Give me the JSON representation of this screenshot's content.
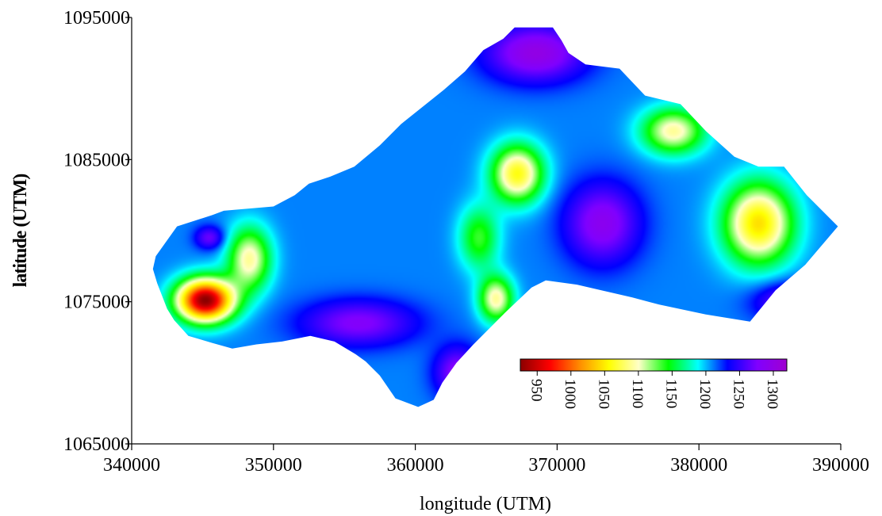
{
  "chart_data": {
    "type": "heatmap",
    "title": "",
    "xlabel": "longitude (UTM)",
    "ylabel": "latitude (UTM)",
    "xlim": [
      340000,
      390000
    ],
    "ylim": [
      1065000,
      1095000
    ],
    "xticks": [
      340000,
      350000,
      360000,
      370000,
      380000,
      390000
    ],
    "yticks": [
      1065000,
      1075000,
      1085000,
      1095000
    ],
    "grid": false,
    "colorbar": {
      "ticks": [
        950,
        1000,
        1050,
        1100,
        1150,
        1200,
        1250,
        1300
      ],
      "range": [
        925,
        1320
      ],
      "colors": [
        "#8b0000",
        "#ff0000",
        "#ff8c00",
        "#ffff00",
        "#ffffc8",
        "#00ff00",
        "#00ffff",
        "#0000ff",
        "#8000ff",
        "#a000d0"
      ],
      "placement": "lower-right inside plot"
    },
    "region_boundary": [
      [
        341700,
        1078200
      ],
      [
        343200,
        1080300
      ],
      [
        345700,
        1081100
      ],
      [
        346500,
        1081400
      ],
      [
        350000,
        1081700
      ],
      [
        351500,
        1082500
      ],
      [
        352500,
        1083300
      ],
      [
        354000,
        1083800
      ],
      [
        355700,
        1084500
      ],
      [
        357500,
        1086000
      ],
      [
        359000,
        1087500
      ],
      [
        362000,
        1089900
      ],
      [
        363500,
        1091200
      ],
      [
        364800,
        1092700
      ],
      [
        366200,
        1093500
      ],
      [
        367000,
        1094300
      ],
      [
        369700,
        1094300
      ],
      [
        370300,
        1093400
      ],
      [
        370800,
        1092500
      ],
      [
        372000,
        1091700
      ],
      [
        374400,
        1091400
      ],
      [
        376200,
        1089500
      ],
      [
        378700,
        1088900
      ],
      [
        380500,
        1087000
      ],
      [
        382500,
        1085200
      ],
      [
        384200,
        1084500
      ],
      [
        386000,
        1084500
      ],
      [
        387600,
        1082500
      ],
      [
        389800,
        1080300
      ],
      [
        387500,
        1077600
      ],
      [
        385400,
        1075800
      ],
      [
        383600,
        1073600
      ],
      [
        380500,
        1074100
      ],
      [
        377200,
        1074800
      ],
      [
        375300,
        1075300
      ],
      [
        371400,
        1076200
      ],
      [
        369200,
        1076500
      ],
      [
        368200,
        1076000
      ],
      [
        366300,
        1074200
      ],
      [
        364100,
        1072000
      ],
      [
        362900,
        1070700
      ],
      [
        361900,
        1069300
      ],
      [
        361300,
        1068100
      ],
      [
        360200,
        1067600
      ],
      [
        358600,
        1068200
      ],
      [
        357500,
        1069800
      ],
      [
        356500,
        1070800
      ],
      [
        355800,
        1071300
      ],
      [
        354300,
        1072200
      ],
      [
        352600,
        1072600
      ],
      [
        350600,
        1072200
      ],
      [
        348800,
        1072000
      ],
      [
        347100,
        1071700
      ],
      [
        345700,
        1072100
      ],
      [
        344000,
        1072600
      ],
      [
        343000,
        1073700
      ],
      [
        342500,
        1074500
      ],
      [
        341800,
        1076300
      ],
      [
        341500,
        1077300
      ]
    ],
    "field_components": [
      {
        "feature": "background",
        "value": 1210
      },
      {
        "feature": "low",
        "x": 345200,
        "y": 1075100,
        "value": 925,
        "sx": 2000,
        "sy": 1500
      },
      {
        "feature": "low",
        "x": 367200,
        "y": 1084000,
        "value": 1060,
        "sx": 1800,
        "sy": 2000
      },
      {
        "feature": "low",
        "x": 384200,
        "y": 1080500,
        "value": 1045,
        "sx": 2400,
        "sy": 2800
      },
      {
        "feature": "low",
        "x": 378200,
        "y": 1087000,
        "value": 1090,
        "sx": 2200,
        "sy": 1600
      },
      {
        "feature": "low",
        "x": 365700,
        "y": 1075200,
        "value": 1090,
        "sx": 1200,
        "sy": 1600
      },
      {
        "feature": "low",
        "x": 364500,
        "y": 1079500,
        "value": 1135,
        "sx": 1400,
        "sy": 2200
      },
      {
        "feature": "low",
        "x": 348300,
        "y": 1078000,
        "value": 1090,
        "sx": 1500,
        "sy": 2200
      },
      {
        "feature": "high",
        "x": 373200,
        "y": 1080500,
        "value": 1290,
        "sx": 2600,
        "sy": 2800
      },
      {
        "feature": "high",
        "x": 368500,
        "y": 1092500,
        "value": 1300,
        "sx": 3500,
        "sy": 2000
      },
      {
        "feature": "high",
        "x": 356000,
        "y": 1073500,
        "value": 1280,
        "sx": 4000,
        "sy": 1600
      },
      {
        "feature": "high",
        "x": 363000,
        "y": 1070000,
        "value": 1285,
        "sx": 1600,
        "sy": 1800
      },
      {
        "feature": "high",
        "x": 345500,
        "y": 1079500,
        "value": 1270,
        "sx": 1000,
        "sy": 800
      },
      {
        "feature": "high",
        "x": 386500,
        "y": 1075000,
        "value": 1280,
        "sx": 2500,
        "sy": 1300
      }
    ]
  }
}
